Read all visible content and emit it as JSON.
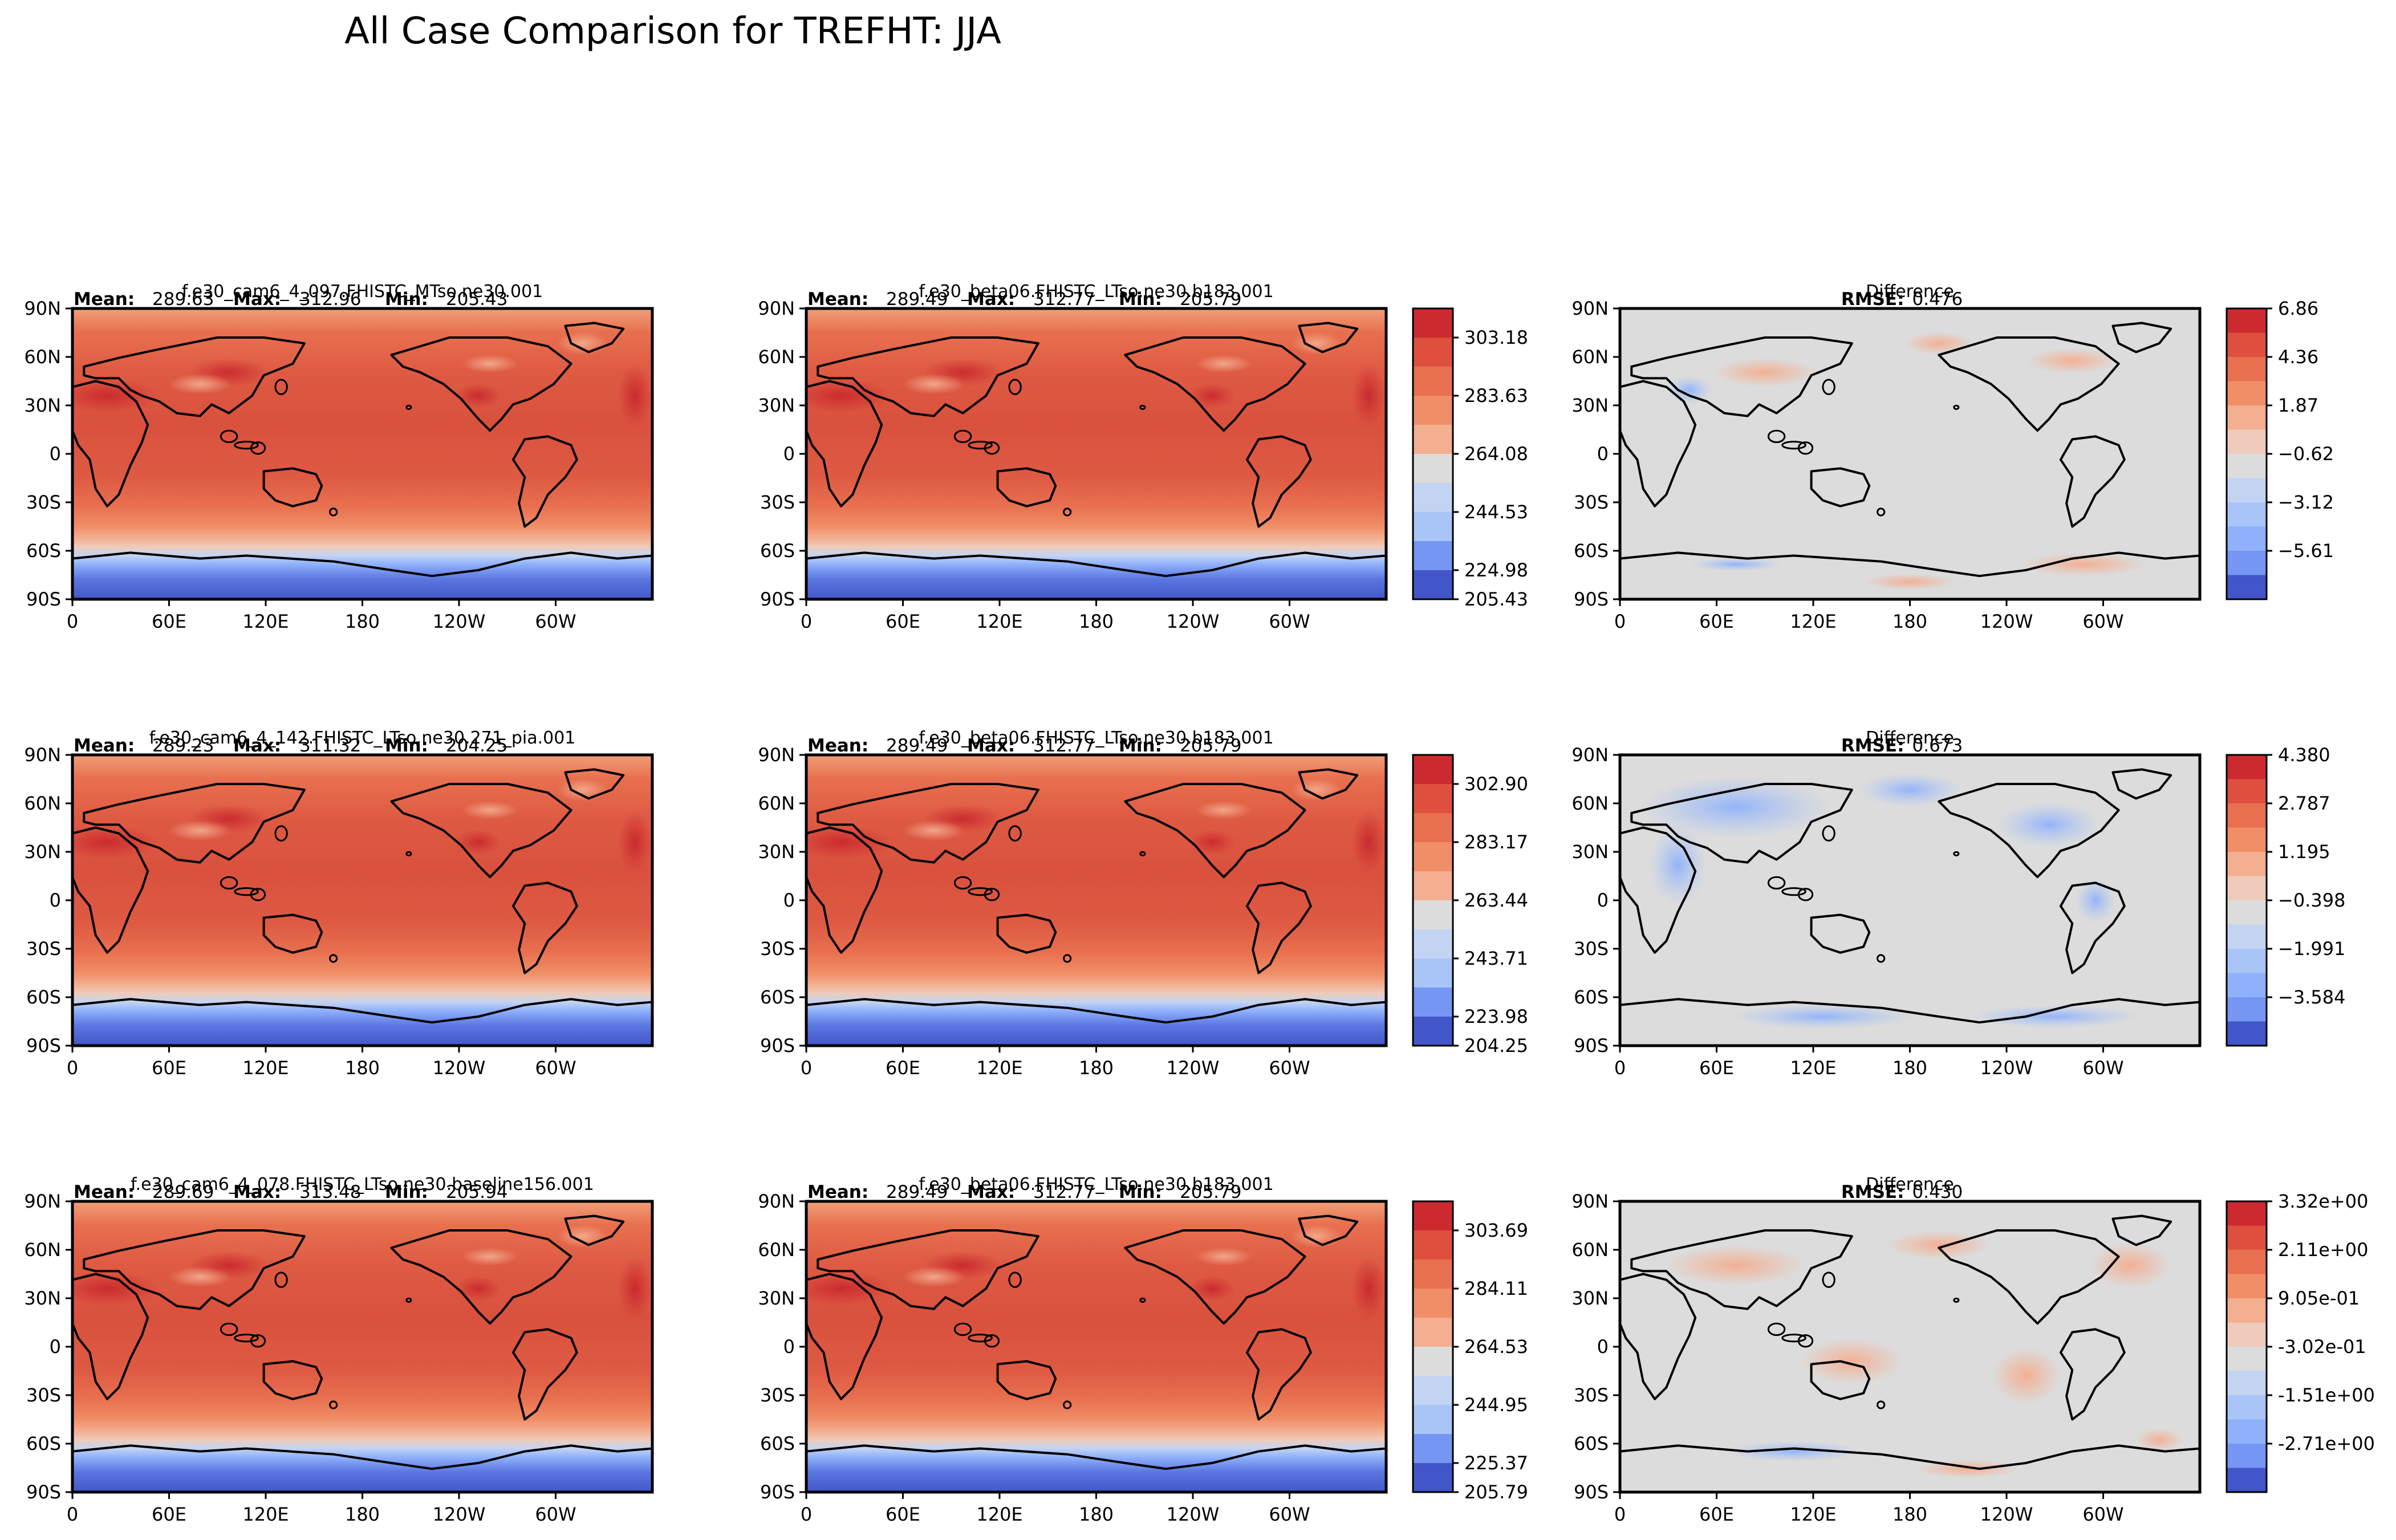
{
  "title": "All Case Comparison for TREFHT: JJA",
  "lon_ticks": [
    "0",
    "60E",
    "120E",
    "180",
    "120W",
    "60W"
  ],
  "lat_ticks": [
    "90N",
    "60N",
    "30N",
    "0",
    "30S",
    "60S",
    "90S"
  ],
  "stat_labels": {
    "mean": "Mean:",
    "max": "Max:",
    "min": "Min:",
    "rmse": "RMSE:"
  },
  "rows": [
    {
      "test": {
        "title": "f.e30_cam6_4_097.FHISTC_MTso.ne30.001",
        "mean": "289.63",
        "max": "312.96",
        "min": "205.43"
      },
      "ref": {
        "title": "f.e30_beta06.FHISTC_LTso.ne30.b183.001",
        "mean": "289.49",
        "max": "312.77",
        "min": "205.79"
      },
      "ref_colorbar": [
        "303.18",
        "283.63",
        "264.08",
        "244.53",
        "224.98",
        "205.43"
      ],
      "diff": {
        "title": "Difference",
        "rmse": "0.476"
      },
      "diff_colorbar": [
        "6.86",
        "4.36",
        "1.87",
        "−0.62",
        "−3.12",
        "−5.61"
      ]
    },
    {
      "test": {
        "title": "f.e30_cam6_4_142.FHISTC_LTso.ne30.271_pia.001",
        "mean": "289.23",
        "max": "311.32",
        "min": "204.25"
      },
      "ref": {
        "title": "f.e30_beta06.FHISTC_LTso.ne30.b183.001",
        "mean": "289.49",
        "max": "312.77",
        "min": "205.79"
      },
      "ref_colorbar": [
        "302.90",
        "283.17",
        "263.44",
        "243.71",
        "223.98",
        "204.25"
      ],
      "diff": {
        "title": "Difference",
        "rmse": "0.673"
      },
      "diff_colorbar": [
        "4.380",
        "2.787",
        "1.195",
        "−0.398",
        "−1.991",
        "−3.584"
      ]
    },
    {
      "test": {
        "title": "f.e30_cam6_4_078.FHISTC_LTso.ne30.baseline156.001",
        "mean": "289.69",
        "max": "313.48",
        "min": "205.94"
      },
      "ref": {
        "title": "f.e30_beta06.FHISTC_LTso.ne30.b183.001",
        "mean": "289.49",
        "max": "312.77",
        "min": "205.79"
      },
      "ref_colorbar": [
        "303.69",
        "284.11",
        "264.53",
        "244.95",
        "225.37",
        "205.79"
      ],
      "diff": {
        "title": "Difference",
        "rmse": "0.430"
      },
      "diff_colorbar": [
        "3.32e+00",
        "2.11e+00",
        "9.05e-01",
        "-3.02e-01",
        "-1.51e+00",
        "-2.71e+00"
      ]
    }
  ],
  "colors": {
    "field_levels": [
      "#cc2a2f",
      "#de4f3e",
      "#e8704f",
      "#f08e67",
      "#f4ae90",
      "#eecbbb",
      "#dcdcdc",
      "#c3d4f2",
      "#a9c4f7",
      "#8fb1fb",
      "#7597f3",
      "#5b77e1",
      "#4356c9"
    ],
    "diff_levels": [
      "#cc2a2f",
      "#de4f3e",
      "#e8704f",
      "#f08e67",
      "#f4ae90",
      "#eecbbb",
      "#dcdcdc",
      "#c3d4f2",
      "#a9c4f7",
      "#8fb1fb",
      "#7597f3",
      "#5b77e1",
      "#4356c9"
    ],
    "coastline": "#000000"
  }
}
